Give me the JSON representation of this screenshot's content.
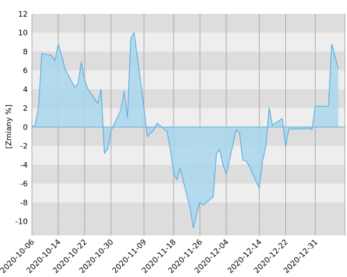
{
  "chart_data": {
    "type": "area",
    "title": "",
    "xlabel": "",
    "ylabel": "[Zmiany %]",
    "ylim": [
      -11.5,
      12
    ],
    "grid": true,
    "yticks": [
      -10,
      -8,
      -6,
      -4,
      -2,
      0,
      2,
      4,
      6,
      8,
      10,
      12
    ],
    "xticks": [
      "2020-10-06",
      "2020-10-14",
      "2020-10-22",
      "2020-10-30",
      "2020-11-09",
      "2020-11-18",
      "2020-11-26",
      "2020-12-04",
      "2020-12-14",
      "2020-12-22",
      "2020-12-31"
    ],
    "colors": {
      "line": "#5aaee3",
      "fill": "#a9d6ec",
      "band_dark": "#dddddd",
      "band_light": "#eeeeee",
      "grid": "#a6a6a6"
    },
    "series": [
      {
        "x": [
          "2020-10-06",
          "2020-10-07",
          "2020-10-08",
          "2020-10-09",
          "2020-10-12",
          "2020-10-13",
          "2020-10-14",
          "2020-10-15",
          "2020-10-16",
          "2020-10-19",
          "2020-10-20",
          "2020-10-21",
          "2020-10-22",
          "2020-10-23",
          "2020-10-26",
          "2020-10-27",
          "2020-10-28",
          "2020-10-29",
          "2020-10-30",
          "2020-11-02",
          "2020-11-03",
          "2020-11-04",
          "2020-11-05",
          "2020-11-06",
          "2020-11-09",
          "2020-11-10",
          "2020-11-12",
          "2020-11-13",
          "2020-11-16",
          "2020-11-17",
          "2020-11-18",
          "2020-11-19",
          "2020-11-20",
          "2020-11-23",
          "2020-11-24",
          "2020-11-25",
          "2020-11-26",
          "2020-11-27",
          "2020-11-30",
          "2020-12-01",
          "2020-12-02",
          "2020-12-03",
          "2020-12-04",
          "2020-12-07",
          "2020-12-08",
          "2020-12-09",
          "2020-12-10",
          "2020-12-11",
          "2020-12-14",
          "2020-12-15",
          "2020-12-16",
          "2020-12-17",
          "2020-12-18",
          "2020-12-21",
          "2020-12-22",
          "2020-12-23",
          "2020-12-28",
          "2020-12-29",
          "2020-12-30",
          "2020-12-31",
          "2021-01-04",
          "2021-01-05",
          "2021-01-07"
        ],
        "values": [
          0.0,
          0.2,
          2.1,
          7.8,
          7.6,
          7.0,
          8.8,
          7.6,
          6.2,
          4.2,
          4.6,
          6.9,
          5.0,
          4.0,
          2.5,
          4.0,
          -2.8,
          -2.3,
          -0.4,
          1.8,
          3.8,
          1.0,
          9.4,
          10.0,
          2.1,
          -1.0,
          -0.3,
          0.4,
          -0.5,
          -2.3,
          -4.9,
          -5.6,
          -4.4,
          -8.6,
          -10.7,
          -9.2,
          -8.0,
          -8.3,
          -7.4,
          -2.8,
          -2.4,
          -4.0,
          -5.0,
          -0.3,
          -0.6,
          -3.5,
          -3.6,
          -4.2,
          -6.5,
          -3.6,
          -2.0,
          2.0,
          0.2,
          0.9,
          -2.1,
          -0.2,
          -0.2,
          -0.1,
          -0.3,
          2.2,
          2.2,
          8.8,
          6.2
        ]
      }
    ]
  }
}
